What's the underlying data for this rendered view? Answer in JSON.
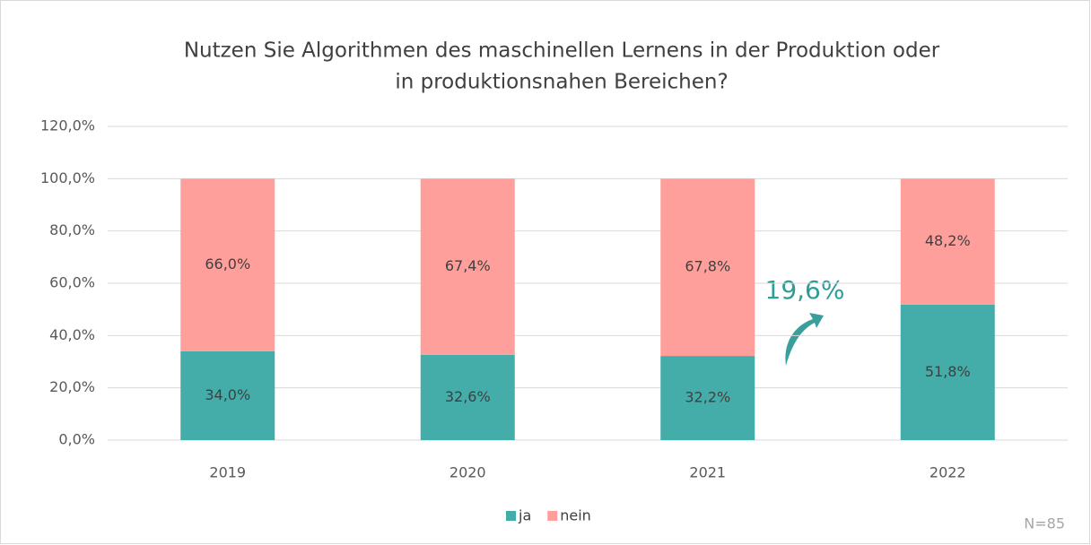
{
  "chart_data": {
    "type": "stacked_bar",
    "title": [
      "Nutzen Sie Algorithmen des maschinellen Lernens in der Produktion oder",
      "in produktionsnahen Bereichen?"
    ],
    "categories": [
      "2019",
      "2020",
      "2021",
      "2022"
    ],
    "series": [
      {
        "name": "ja",
        "color": "#44aca9",
        "values": [
          34.0,
          32.6,
          32.2,
          51.8
        ],
        "value_labels": [
          "34,0%",
          "32,6%",
          "32,2%",
          "51,8%"
        ]
      },
      {
        "name": "nein",
        "color": "#ff9f9b",
        "values": [
          66.0,
          67.4,
          67.8,
          48.2
        ],
        "value_labels": [
          "66,0%",
          "67,4%",
          "67,8%",
          "48,2%"
        ]
      }
    ],
    "ylim": [
      0,
      120
    ],
    "yticks": [
      {
        "value": 0,
        "label": "0,0%"
      },
      {
        "value": 20,
        "label": "20,0%"
      },
      {
        "value": 40,
        "label": "40,0%"
      },
      {
        "value": 60,
        "label": "60,0%"
      },
      {
        "value": 80,
        "label": "80,0%"
      },
      {
        "value": 100,
        "label": "100,0%"
      },
      {
        "value": 120,
        "label": "120,0%"
      }
    ],
    "grid": true,
    "legend": "bottom",
    "annotation": "19,6%",
    "note": "N=85"
  }
}
